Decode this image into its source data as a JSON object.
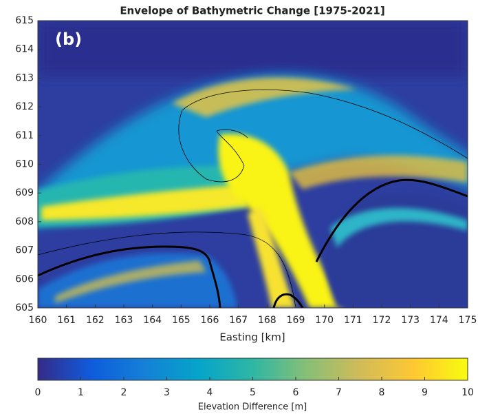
{
  "chart_data": {
    "type": "heatmap",
    "title": "Envelope of Bathymetric Change [1975-2021]",
    "panel_label": "(b)",
    "xlabel": "Easting [km]",
    "xlim": [
      160,
      175
    ],
    "xticks": [
      160,
      161,
      162,
      163,
      164,
      165,
      166,
      167,
      168,
      169,
      170,
      171,
      172,
      173,
      174,
      175
    ],
    "ylim": [
      605,
      615
    ],
    "yticks": [
      605,
      606,
      607,
      608,
      609,
      610,
      611,
      612,
      613,
      614,
      615
    ],
    "colorbar": {
      "label": "Elevation Difference [m]",
      "lim": [
        0,
        10
      ],
      "ticks": [
        0,
        1,
        2,
        3,
        4,
        5,
        6,
        7,
        8,
        9,
        10
      ],
      "colors": [
        "#352a87",
        "#0f5cdd",
        "#1481d6",
        "#06a4ca",
        "#2eb7a4",
        "#87bf77",
        "#d1bb59",
        "#fec832",
        "#f9fb0e"
      ]
    }
  }
}
